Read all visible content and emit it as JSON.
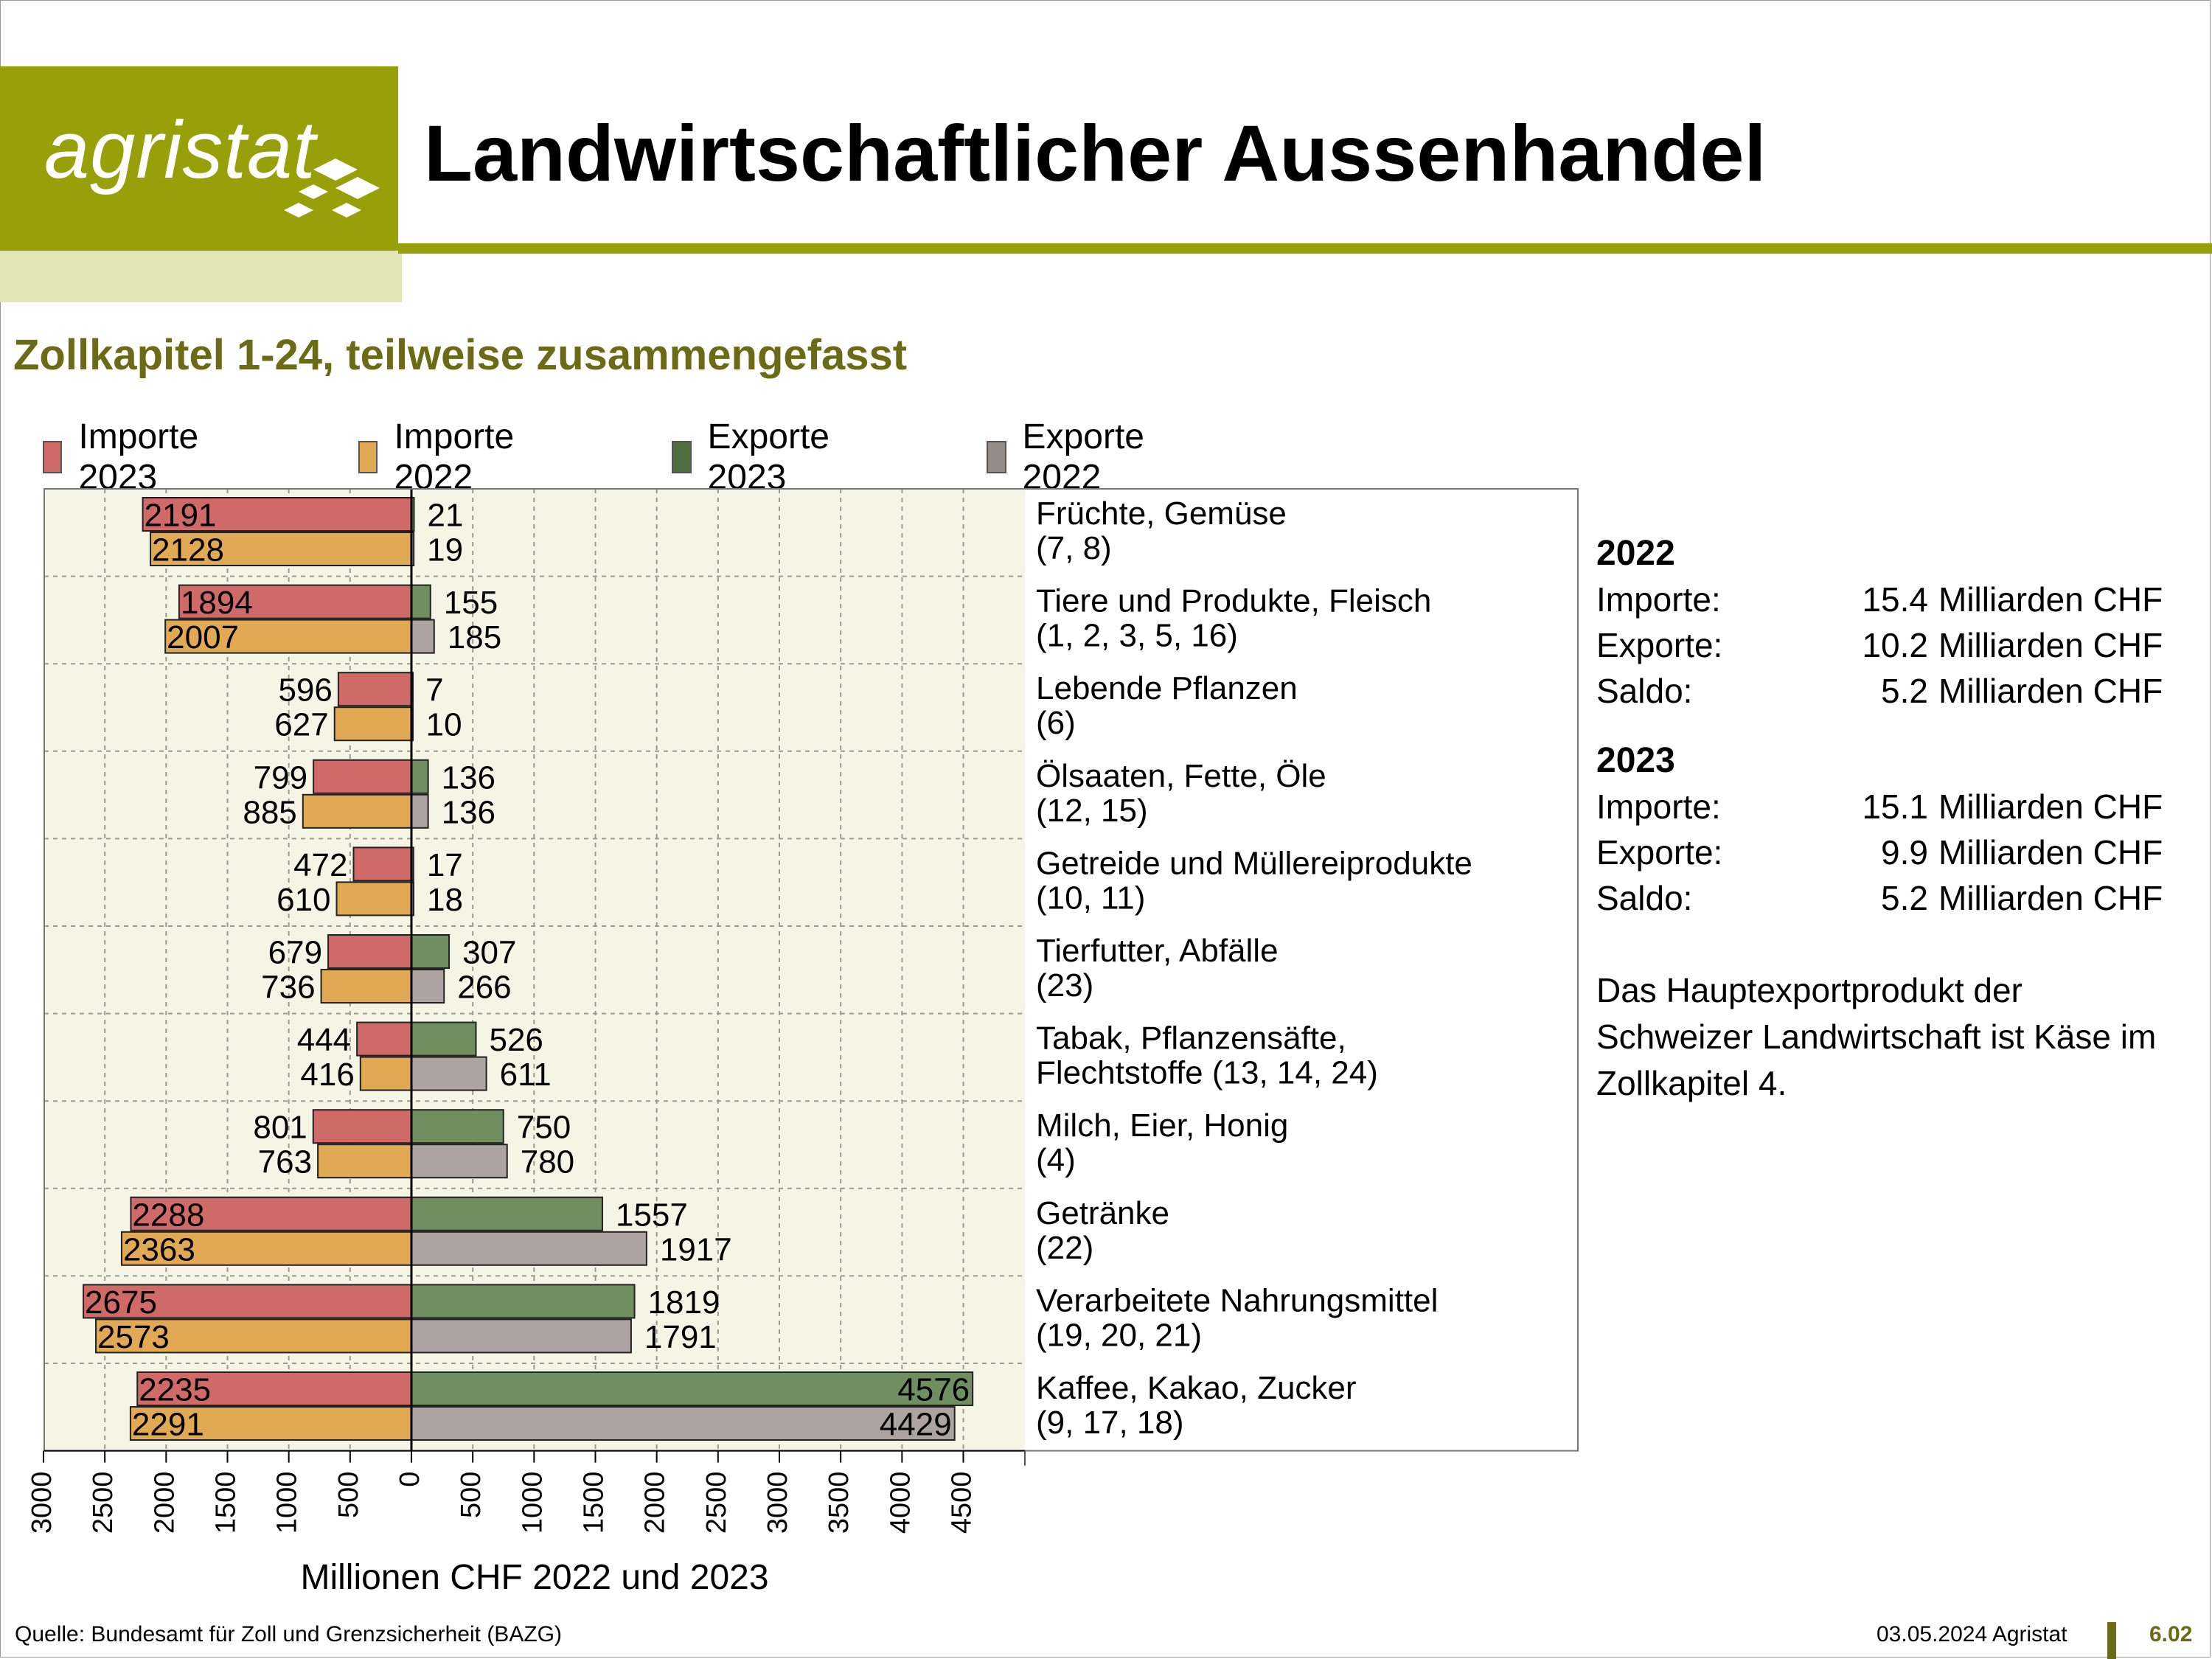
{
  "header": {
    "logo_text": "agristat",
    "title": "Landwirtschaftlicher Aussenhandel",
    "subtitle": "Zollkapitel 1-24, teilweise zusammengefasst",
    "accent_color": "#98a009",
    "accent_dark": "#6b6a16"
  },
  "legend": [
    {
      "label": "Importe 2023",
      "color": "#d06a68"
    },
    {
      "label": "Importe 2022",
      "color": "#e2a955"
    },
    {
      "label": "Exporte 2023",
      "color": "#708f61"
    },
    {
      "label": "Exporte 2022",
      "color": "#ada4a1"
    }
  ],
  "chart_data": {
    "type": "bar",
    "orientation": "horizontal",
    "xlabel": "Millionen CHF 2022 und 2023",
    "xlim": [
      -3000,
      5000
    ],
    "ticks": [
      -3000,
      -2500,
      -2000,
      -1500,
      -1000,
      -500,
      0,
      500,
      1000,
      1500,
      2000,
      2500,
      3000,
      3500,
      4000,
      4500
    ],
    "tick_labels": [
      "3000",
      "2500",
      "2000",
      "1500",
      "1000",
      "500",
      "0",
      "500",
      "1000",
      "1500",
      "2000",
      "2500",
      "3000",
      "3500",
      "4000",
      "4500"
    ],
    "grid": true,
    "categories": [
      [
        "Früchte, Gemüse",
        "(7, 8)"
      ],
      [
        "Tiere und Produkte, Fleisch",
        "(1, 2, 3, 5, 16)"
      ],
      [
        "Lebende Pflanzen",
        "(6)"
      ],
      [
        "Ölsaaten, Fette, Öle",
        "(12, 15)"
      ],
      [
        "Getreide und Müllereiprodukte",
        "(10, 11)"
      ],
      [
        "Tierfutter, Abfälle",
        "(23)"
      ],
      [
        "Tabak, Pflanzensäfte,",
        "Flechtstoffe (13, 14, 24)"
      ],
      [
        "Milch, Eier, Honig",
        "(4)"
      ],
      [
        "Getränke",
        "(22)"
      ],
      [
        "Verarbeitete Nahrungsmittel",
        "(19, 20, 21)"
      ],
      [
        "Kaffee, Kakao, Zucker",
        "(9, 17, 18)"
      ]
    ],
    "series": [
      {
        "name": "Importe 2023",
        "values": [
          2191,
          1894,
          596,
          799,
          472,
          679,
          444,
          801,
          2288,
          2675,
          2235
        ]
      },
      {
        "name": "Importe 2022",
        "values": [
          2128,
          2007,
          627,
          885,
          610,
          736,
          416,
          763,
          2363,
          2573,
          2291
        ]
      },
      {
        "name": "Exporte 2023",
        "values": [
          21,
          155,
          7,
          136,
          17,
          307,
          526,
          750,
          1557,
          1819,
          4576
        ]
      },
      {
        "name": "Exporte 2022",
        "values": [
          19,
          185,
          10,
          136,
          18,
          266,
          611,
          780,
          1917,
          1791,
          4429
        ]
      }
    ],
    "plot_background": "#f5f5e6"
  },
  "summary": [
    {
      "year": "2022",
      "rows": [
        {
          "key": "Importe:",
          "value": "15.4",
          "unit": "Milliarden CHF"
        },
        {
          "key": "Exporte:",
          "value": "10.2",
          "unit": "Milliarden CHF"
        },
        {
          "key": "Saldo:",
          "value": "5.2",
          "unit": "Milliarden CHF"
        }
      ]
    },
    {
      "year": "2023",
      "rows": [
        {
          "key": "Importe:",
          "value": "15.1",
          "unit": "Milliarden CHF"
        },
        {
          "key": "Exporte:",
          "value": "9.9",
          "unit": "Milliarden CHF"
        },
        {
          "key": "Saldo:",
          "value": "5.2",
          "unit": "Milliarden CHF"
        }
      ]
    }
  ],
  "note": "Das Hauptexportprodukt der Schweizer Landwirtschaft ist Käse im Zollkapitel 4.",
  "footer": {
    "source": "Quelle: Bundesamt für Zoll und Grenzsicherheit (BAZG)",
    "date": "03.05.2024 Agristat",
    "page": "6.02"
  }
}
